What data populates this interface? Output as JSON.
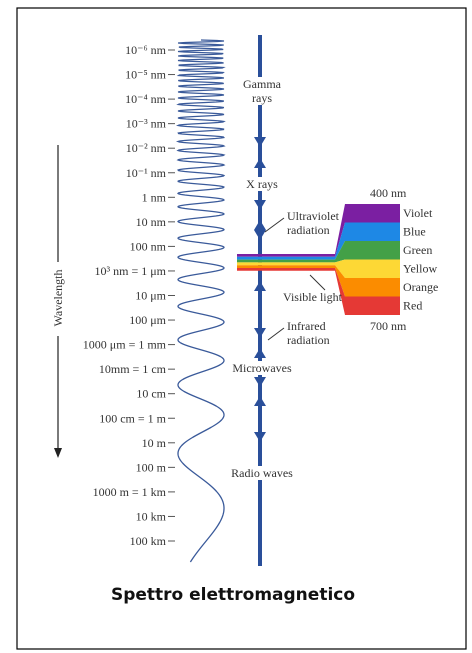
{
  "axis_label": "Wavelength",
  "wavelength_labels": [
    "10⁻⁶ nm",
    "10⁻⁵ nm",
    "10⁻⁴ nm",
    "10⁻³ nm",
    "10⁻² nm",
    "10⁻¹ nm",
    "1 nm",
    "10 nm",
    "100 nm",
    "10³ nm = 1 μm",
    "10 μm",
    "100 μm",
    "1000 μm = 1 mm",
    "10mm = 1 cm",
    "10 cm",
    "100 cm = 1 m",
    "10 m",
    "100 m",
    "1000 m = 1 km",
    "10 km",
    "100 km"
  ],
  "regions": [
    {
      "lines": [
        "Gamma",
        "rays"
      ]
    },
    {
      "lines": [
        "X rays"
      ]
    },
    {
      "lines": [
        "Ultraviolet",
        "radiation"
      ]
    },
    {
      "lines": [
        "Visible light"
      ]
    },
    {
      "lines": [
        "Infrared",
        "radiation"
      ]
    },
    {
      "lines": [
        "Microwaves"
      ]
    },
    {
      "lines": [
        "Radio waves"
      ]
    }
  ],
  "visible": {
    "start": "400 nm",
    "end": "700 nm",
    "colors": [
      "Violet",
      "Blue",
      "Green",
      "Yellow",
      "Orange",
      "Red"
    ]
  },
  "caption": "Spettro elettromagnetico"
}
